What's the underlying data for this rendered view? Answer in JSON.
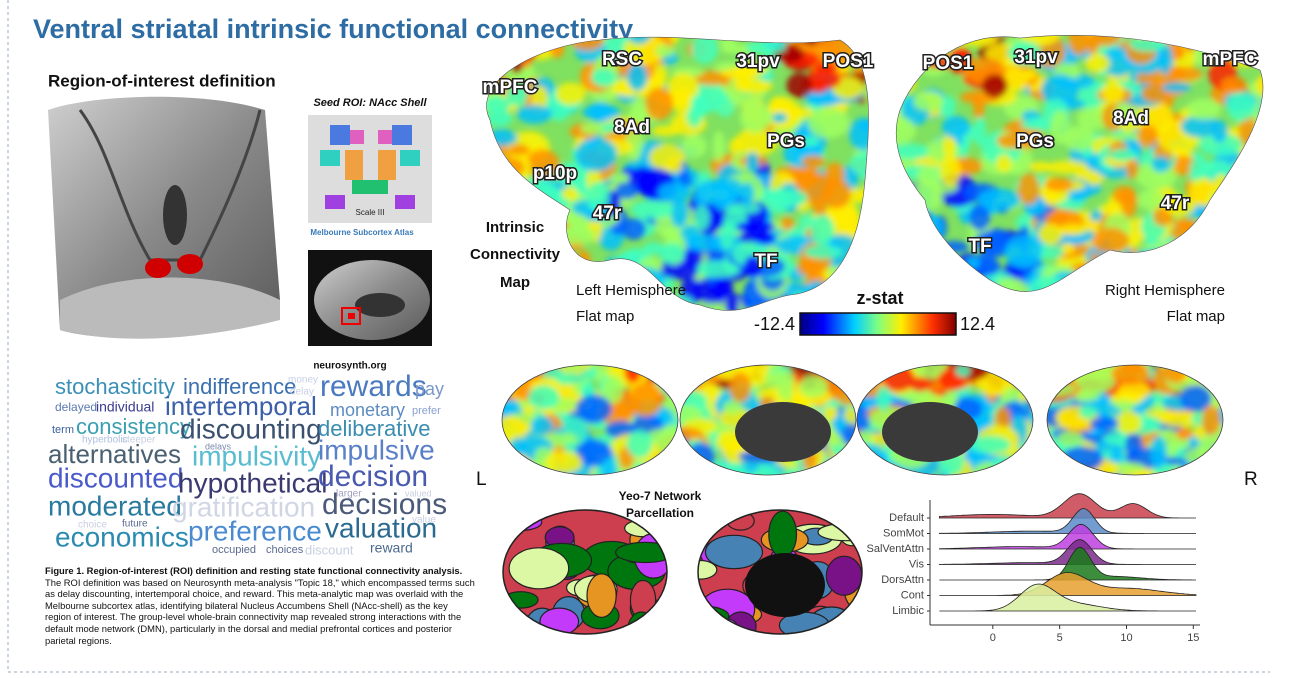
{
  "title": "Ventral striatal intrinsic functional connectivity",
  "roi": {
    "heading": "Region-of-interest definition",
    "seed_label": "Seed ROI: NAcc Shell",
    "scale_label": "Scale III",
    "atlas_name": "Melbourne Subcortex Atlas",
    "source": "neurosynth.org"
  },
  "word_cloud": [
    "stochasticity",
    "indifference",
    "money",
    "delay",
    "rewards",
    "pay",
    "delayed",
    "individual",
    "intertemporal",
    "monetary",
    "prefer",
    "term",
    "consistency",
    "discounting",
    "deliberative",
    "hyperbolic",
    "steeper",
    "delays",
    "alternatives",
    "impulsivity",
    "impulsive",
    "discounted",
    "hypothetical",
    "decision",
    "larger",
    "valued",
    "moderated",
    "gratification",
    "decisions",
    "choice",
    "future",
    "economics",
    "preference",
    "valuation",
    "occupied",
    "choices",
    "discount",
    "reward",
    "value"
  ],
  "caption": {
    "title": "Figure 1. Region-of-interest (ROI) definition and resting state functional connectivity analysis.",
    "text": "The ROI definition was based on Neurosynth meta-analysis \"Topic 18,\" which encompassed terms such as delay discounting, intertemporal choice, and reward. This meta-analytic map was overlaid with the Melbourne subcortex atlas, identifying bilateral Nucleus Accumbens Shell (NAcc-shell) as the key region of interest. The group-level whole-brain connectivity map revealed strong interactions with the default mode network (DMN), particularly in the dorsal and medial prefrontal cortices and posterior parietal regions."
  },
  "maps": {
    "left_labels": [
      "RSC",
      "31pv",
      "POS1",
      "mPFC",
      "8Ad",
      "PGs",
      "p10p",
      "47r",
      "TF"
    ],
    "right_labels": [
      "POS1",
      "31pv",
      "mPFC",
      "8Ad",
      "PGs",
      "47r",
      "TF"
    ],
    "map_label": [
      "Intrinsic",
      "Connectivity",
      "Map"
    ],
    "left_caption": [
      "Left Hemisphere",
      "Flat map"
    ],
    "right_caption": [
      "Right Hemisphere",
      "Flat map"
    ],
    "colorbar": {
      "label": "z-stat",
      "min": -12.4,
      "max": 12.4
    },
    "hemi_left": "L",
    "hemi_right": "R"
  },
  "parcellation": {
    "title": [
      "Yeo-7 Network",
      "Parcellation"
    ]
  },
  "ridge_plot": {
    "categories": [
      "Default",
      "SomMot",
      "SalVentAttn",
      "Vis",
      "DorsAttn",
      "Cont",
      "Limbic"
    ],
    "colors": [
      "#c8404c",
      "#5a8cc8",
      "#c040e0",
      "#7a2a8a",
      "#1a7a1a",
      "#e8a030",
      "#d8f0a0"
    ],
    "xlim": [
      -4.7,
      15.5
    ],
    "xticks": [
      0,
      5,
      10,
      15
    ]
  }
}
